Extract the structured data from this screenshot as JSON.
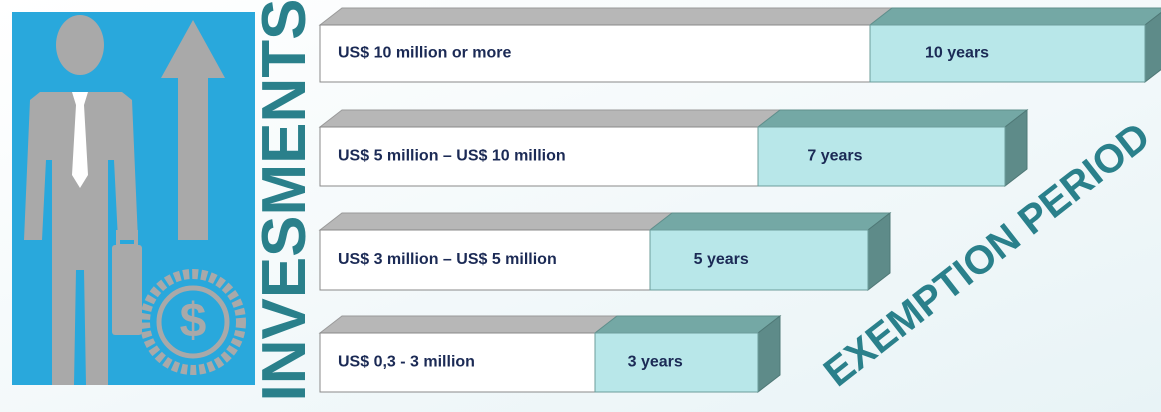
{
  "title": "INVESMENTS",
  "side_label": "EXEMPTION PERIOD",
  "icon_symbol": "$",
  "rows": [
    {
      "range": "US$ 10 million or more",
      "period": "10 years"
    },
    {
      "range": "US$ 5 million – US$ 10 million",
      "period": "7 years"
    },
    {
      "range": "US$ 3 million – US$ 5 million",
      "period": "5 years"
    },
    {
      "range": "US$ 0,3 - 3 million",
      "period": "3 years"
    }
  ]
}
